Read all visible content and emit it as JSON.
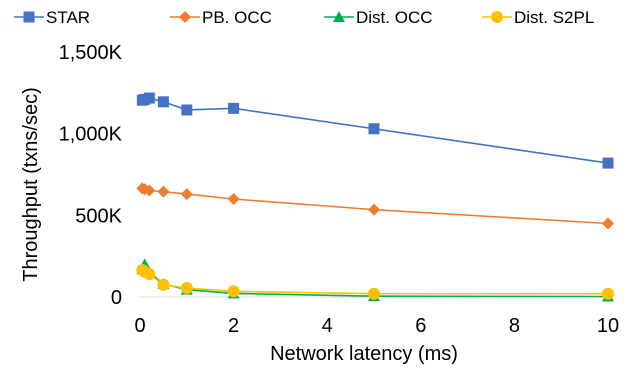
{
  "chart_data": {
    "type": "line",
    "xlabel": "Network latency (ms)",
    "ylabel": "Throughput (txns/sec)",
    "xlim": [
      0,
      10
    ],
    "ylim": [
      0,
      1500000
    ],
    "xticks": [
      0,
      2,
      4,
      6,
      8,
      10
    ],
    "yticks": [
      0,
      500000,
      1000000,
      1500000
    ],
    "ytick_labels": [
      "0",
      "500K",
      "1,000K",
      "1,500K"
    ],
    "grid": false,
    "legend_position": "top",
    "series": [
      {
        "name": "STAR",
        "color": "#4472C4",
        "marker": "square",
        "x": [
          0.05,
          0.1,
          0.2,
          0.5,
          1,
          2,
          5,
          10
        ],
        "y": [
          1205000,
          1210000,
          1218000,
          1195000,
          1145000,
          1155000,
          1030000,
          820000
        ]
      },
      {
        "name": "PB. OCC",
        "color": "#ED7D31",
        "marker": "diamond",
        "x": [
          0.05,
          0.1,
          0.2,
          0.5,
          1,
          2,
          5,
          10
        ],
        "y": [
          665000,
          660000,
          652000,
          645000,
          630000,
          600000,
          535000,
          450000
        ]
      },
      {
        "name": "Dist. OCC",
        "color": "#00B050",
        "marker": "triangle",
        "x": [
          0.05,
          0.1,
          0.2,
          0.5,
          1,
          2,
          5,
          10
        ],
        "y": [
          170000,
          200000,
          150000,
          80000,
          45000,
          22000,
          5000,
          3000
        ]
      },
      {
        "name": "Dist. S2PL",
        "color": "#FFC000",
        "marker": "circle",
        "x": [
          0.05,
          0.1,
          0.2,
          0.5,
          1,
          2,
          5,
          10
        ],
        "y": [
          165000,
          155000,
          140000,
          75000,
          55000,
          35000,
          20000,
          20000
        ]
      }
    ]
  }
}
